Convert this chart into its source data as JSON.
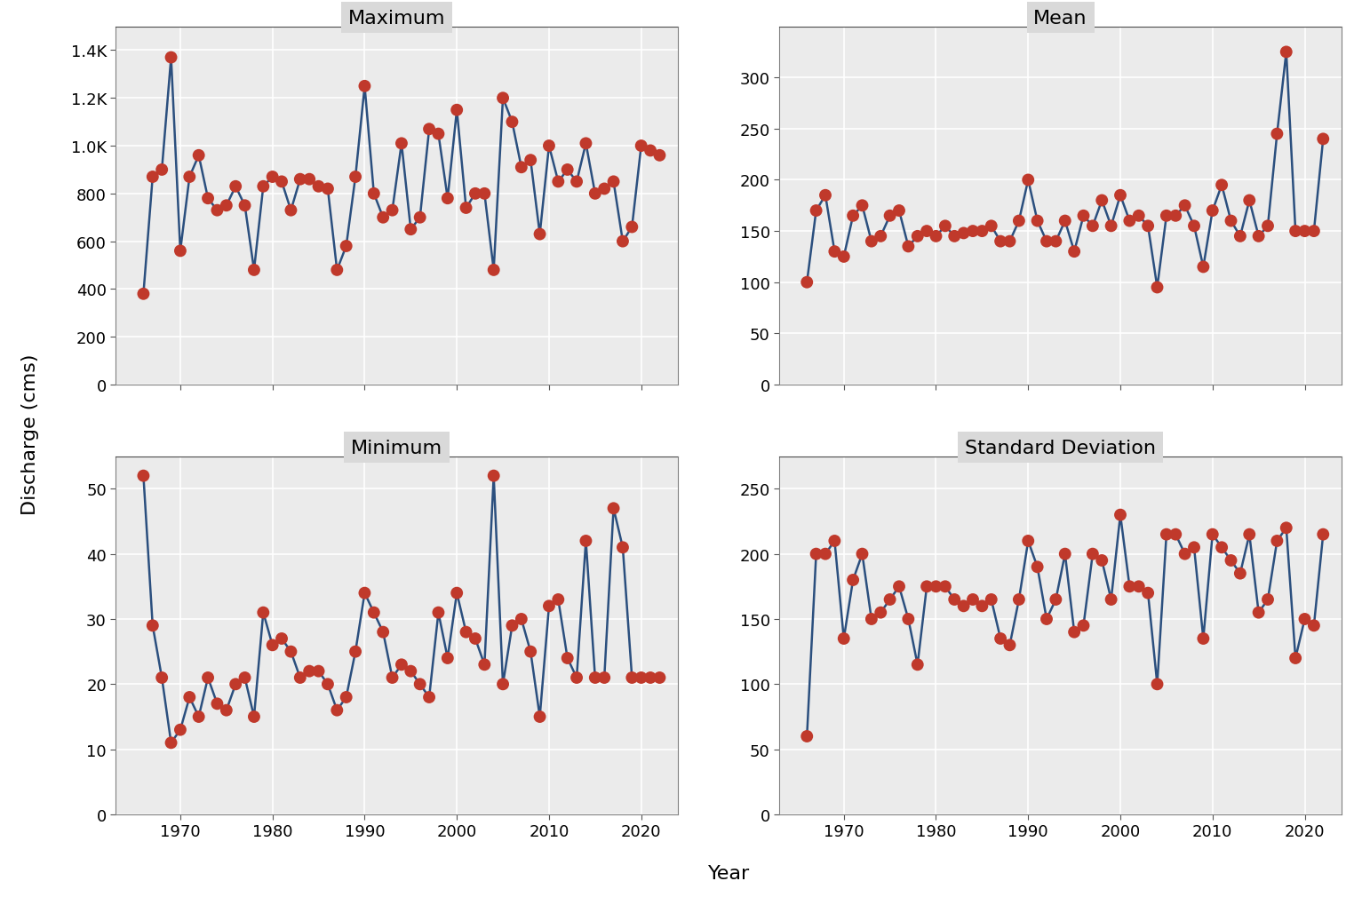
{
  "years": [
    1966,
    1967,
    1968,
    1969,
    1970,
    1971,
    1972,
    1973,
    1974,
    1975,
    1976,
    1977,
    1978,
    1979,
    1980,
    1981,
    1982,
    1983,
    1984,
    1985,
    1986,
    1987,
    1988,
    1989,
    1990,
    1991,
    1992,
    1993,
    1994,
    1995,
    1996,
    1997,
    1998,
    1999,
    2000,
    2001,
    2002,
    2003,
    2004,
    2005,
    2006,
    2007,
    2008,
    2009,
    2010,
    2011,
    2012,
    2013,
    2014,
    2015,
    2016,
    2017,
    2018,
    2019,
    2020,
    2021,
    2022
  ],
  "maximum": [
    380,
    870,
    900,
    1370,
    560,
    870,
    960,
    780,
    730,
    750,
    830,
    750,
    480,
    830,
    870,
    850,
    730,
    860,
    860,
    830,
    820,
    480,
    580,
    870,
    1250,
    800,
    700,
    730,
    1010,
    650,
    700,
    1070,
    1050,
    780,
    1150,
    740,
    800,
    800,
    480,
    1200,
    1100,
    910,
    940,
    630,
    1000,
    850,
    900,
    850,
    1010,
    800,
    820,
    850,
    600,
    660,
    1000,
    980,
    960
  ],
  "minimum": [
    52,
    29,
    21,
    11,
    13,
    18,
    15,
    21,
    17,
    16,
    20,
    21,
    15,
    31,
    26,
    27,
    25,
    21,
    22,
    22,
    20,
    16,
    18,
    25,
    34,
    31,
    28,
    21,
    23,
    22,
    20,
    18,
    31,
    24,
    34,
    28,
    27,
    23,
    52,
    20,
    29,
    30,
    25,
    15,
    32,
    33,
    24,
    21,
    42,
    21,
    21,
    47,
    41,
    21,
    21,
    21,
    21
  ],
  "mean": [
    100,
    170,
    185,
    130,
    125,
    165,
    175,
    140,
    145,
    165,
    170,
    135,
    145,
    150,
    145,
    155,
    145,
    148,
    150,
    150,
    155,
    140,
    140,
    160,
    200,
    160,
    140,
    140,
    160,
    130,
    165,
    155,
    180,
    155,
    185,
    160,
    165,
    155,
    95,
    165,
    165,
    175,
    155,
    115,
    170,
    195,
    160,
    145,
    180,
    145,
    155,
    245,
    325,
    150,
    150,
    150,
    240
  ],
  "std_dev": [
    60,
    200,
    200,
    210,
    135,
    180,
    200,
    150,
    155,
    165,
    175,
    150,
    115,
    175,
    175,
    175,
    165,
    160,
    165,
    160,
    165,
    135,
    130,
    165,
    210,
    190,
    150,
    165,
    200,
    140,
    145,
    200,
    195,
    165,
    230,
    175,
    175,
    170,
    100,
    215,
    215,
    200,
    205,
    135,
    215,
    205,
    195,
    185,
    215,
    155,
    165,
    210,
    220,
    120,
    150,
    145,
    215
  ],
  "line_color": "#2b4f7e",
  "dot_color": "#c0392b",
  "strip_bg": "#d9d9d9",
  "strip_border": "#4d4d4d",
  "plot_bg": "#ebebeb",
  "grid_color": "#ffffff",
  "outer_border": "#808080",
  "title_fontsize": 16,
  "axis_fontsize": 16,
  "tick_fontsize": 13,
  "ylabel": "Discharge (cms)",
  "xlabel": "Year",
  "max_ylim": [
    0,
    1500
  ],
  "min_ylim": [
    0,
    55
  ],
  "mean_ylim": [
    0,
    350
  ],
  "std_ylim": [
    0,
    275
  ],
  "max_yticks": [
    0,
    200,
    400,
    600,
    800,
    1000,
    1200,
    1400
  ],
  "mean_yticks": [
    0,
    50,
    100,
    150,
    200,
    250,
    300
  ],
  "min_yticks": [
    0,
    10,
    20,
    30,
    40,
    50
  ],
  "std_yticks": [
    0,
    50,
    100,
    150,
    200,
    250
  ],
  "xlim": [
    1963,
    2024
  ],
  "xticks": [
    1970,
    1980,
    1990,
    2000,
    2010,
    2020
  ]
}
